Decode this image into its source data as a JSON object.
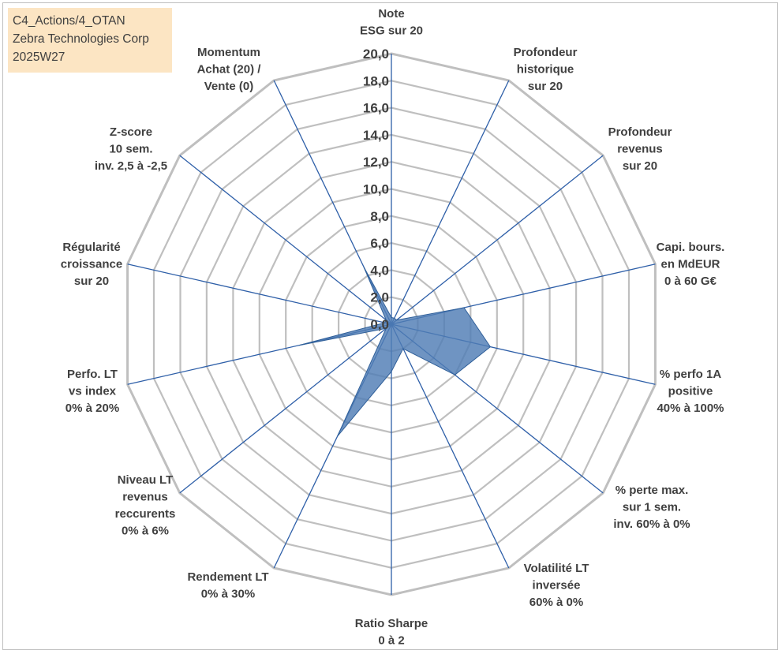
{
  "header": {
    "lines": [
      "C4_Actions/4_OTAN",
      "Zebra Technologies Corp",
      "2025W27"
    ]
  },
  "chart_data": {
    "type": "radar",
    "title": "",
    "rmin": 0,
    "rmax": 20,
    "tick_step": 2,
    "tick_labels": [
      "0,0",
      "2,0",
      "4,0",
      "6,0",
      "8,0",
      "10,0",
      "12,0",
      "14,0",
      "16,0",
      "18,0",
      "20,0"
    ],
    "axes": [
      [
        "Note",
        "ESG sur 20"
      ],
      [
        "Profondeur",
        "historique",
        "sur 20"
      ],
      [
        "Profondeur",
        "revenus",
        "sur 20"
      ],
      [
        "Capi. bours.",
        "en MdEUR",
        "0 à 60 G€"
      ],
      [
        "% perfo 1A",
        "positive",
        "40% à 100%"
      ],
      [
        "% perte max.",
        "sur 1 sem.",
        "inv. 60% à 0%"
      ],
      [
        "Volatilité LT",
        "inversée",
        "60% à 0%"
      ],
      [
        "Ratio Sharpe",
        "0 à 2"
      ],
      [
        "Rendement LT",
        "0% à 30%"
      ],
      [
        "Niveau LT",
        "revenus",
        "reccurents",
        "0% à 6%"
      ],
      [
        "Perfo. LT",
        "vs index",
        "0% à 20%"
      ],
      [
        "Régularité",
        "croissance",
        "sur 20"
      ],
      [
        "Z-score",
        "10 sem.",
        "inv. 2,5 à -2,5"
      ],
      [
        "Momentum",
        "Achat (20) /",
        "Vente (0)"
      ]
    ],
    "series": [
      {
        "values": [
          0.5,
          0.5,
          0.5,
          5.5,
          7.5,
          6.0,
          2.0,
          3.5,
          9.2,
          0.5,
          7.0,
          0.5,
          0.5,
          4.7
        ],
        "fill": "#4f7db5",
        "stroke": "#2f5f99"
      }
    ],
    "grid_color": "#bfbfbf",
    "spoke_color": "#2e5fa8",
    "grid": true,
    "legend": "none"
  }
}
